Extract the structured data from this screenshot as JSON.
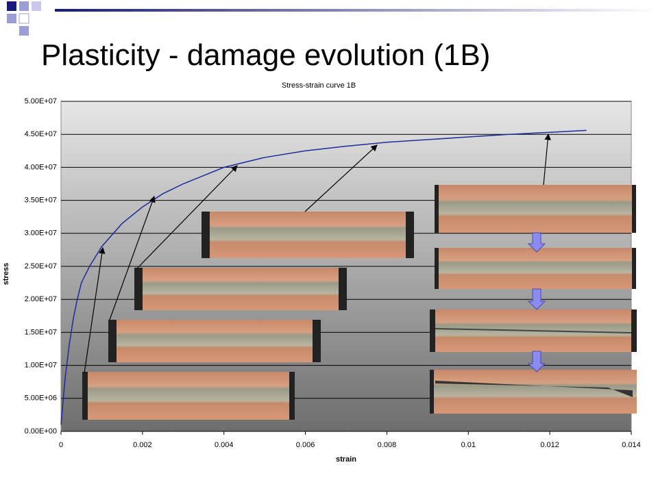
{
  "slide": {
    "title": "Plasticity - damage evolution (1B)"
  },
  "chart_data": {
    "type": "line",
    "title": "Stress-strain curve 1B",
    "xlabel": "strain",
    "ylabel": "stress",
    "x": [
      0,
      0.0001,
      0.0002,
      0.0003,
      0.0004,
      0.0005,
      0.0007,
      0.001,
      0.0015,
      0.002,
      0.0025,
      0.003,
      0.004,
      0.005,
      0.006,
      0.007,
      0.008,
      0.009,
      0.01,
      0.011,
      0.012,
      0.0129
    ],
    "series": [
      {
        "name": "stress",
        "color": "#1f2a9a",
        "values": [
          1000000,
          8000000,
          13000000,
          17000000,
          20000000,
          22500000,
          25000000,
          28000000,
          31500000,
          34000000,
          36000000,
          37500000,
          40000000,
          41500000,
          42500000,
          43200000,
          43800000,
          44200000,
          44600000,
          45000000,
          45300000,
          45600000
        ]
      }
    ],
    "xlim": [
      0,
      0.014
    ],
    "xticks": [
      0,
      0.002,
      0.004,
      0.006,
      0.008,
      0.01,
      0.012,
      0.014
    ],
    "ylim": [
      0,
      50000000
    ],
    "yticks": [
      {
        "value": 0,
        "label": "0.00E+00"
      },
      {
        "value": 5000000,
        "label": "5.00E+06"
      },
      {
        "value": 10000000,
        "label": "1.00E+07"
      },
      {
        "value": 15000000,
        "label": "1.50E+07"
      },
      {
        "value": 20000000,
        "label": "2.00E+07"
      },
      {
        "value": 25000000,
        "label": "2.50E+07"
      },
      {
        "value": 30000000,
        "label": "3.00E+07"
      },
      {
        "value": 35000000,
        "label": "3.50E+07"
      },
      {
        "value": 40000000,
        "label": "4.00E+07"
      },
      {
        "value": 45000000,
        "label": "4.50E+07"
      },
      {
        "value": 50000000,
        "label": "5.00E+07"
      }
    ],
    "grid": true
  }
}
